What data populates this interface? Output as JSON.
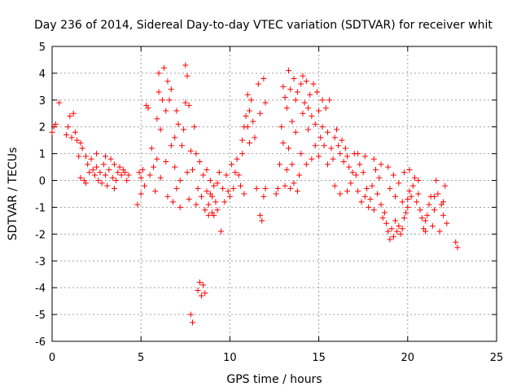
{
  "chart_data": {
    "type": "scatter",
    "title": "Day 236 of 2014, Sidereal Day-to-day VTEC variation (SDTVAR) for receiver whit",
    "xlabel": "GPS time / hours",
    "ylabel": "SDTVAR / TECUs",
    "xlim": [
      0,
      25
    ],
    "ylim": [
      -6,
      5
    ],
    "xticks": [
      "0",
      "5",
      "10",
      "15",
      "20",
      "25"
    ],
    "yticks": [
      "-6",
      "-5",
      "-4",
      "-3",
      "-2",
      "-1",
      "0",
      "1",
      "2",
      "3",
      "4",
      "5"
    ],
    "grid": true,
    "marker": "+",
    "series_color": "#ff0000",
    "series": [
      {
        "name": "SDTVAR",
        "points": [
          [
            0.0,
            1.8
          ],
          [
            0.1,
            2.0
          ],
          [
            0.2,
            2.1
          ],
          [
            0.4,
            2.9
          ],
          [
            0.8,
            1.7
          ],
          [
            0.9,
            2.0
          ],
          [
            1.0,
            2.4
          ],
          [
            1.1,
            1.6
          ],
          [
            1.2,
            2.5
          ],
          [
            1.3,
            1.8
          ],
          [
            1.4,
            1.5
          ],
          [
            1.5,
            0.9
          ],
          [
            1.6,
            1.4
          ],
          [
            1.6,
            0.1
          ],
          [
            1.7,
            1.2
          ],
          [
            1.8,
            0.0
          ],
          [
            1.9,
            0.9
          ],
          [
            1.9,
            -0.1
          ],
          [
            2.0,
            0.6
          ],
          [
            2.1,
            0.3
          ],
          [
            2.2,
            0.8
          ],
          [
            2.3,
            0.4
          ],
          [
            2.4,
            0.2
          ],
          [
            2.5,
            1.0
          ],
          [
            2.5,
            0.5
          ],
          [
            2.6,
            0.0
          ],
          [
            2.7,
            0.3
          ],
          [
            2.8,
            -0.1
          ],
          [
            2.9,
            0.6
          ],
          [
            3.0,
            0.2
          ],
          [
            3.0,
            0.9
          ],
          [
            3.1,
            -0.2
          ],
          [
            3.2,
            0.4
          ],
          [
            3.3,
            0.8
          ],
          [
            3.4,
            0.1
          ],
          [
            3.5,
            -0.3
          ],
          [
            3.5,
            0.6
          ],
          [
            3.6,
            0.0
          ],
          [
            3.7,
            0.3
          ],
          [
            3.8,
            0.5
          ],
          [
            3.9,
            0.2
          ],
          [
            4.0,
            0.4
          ],
          [
            4.1,
            0.3
          ],
          [
            4.2,
            0.0
          ],
          [
            4.3,
            0.2
          ],
          [
            4.8,
            -0.9
          ],
          [
            4.9,
            0.3
          ],
          [
            5.0,
            0.1
          ],
          [
            5.0,
            -0.5
          ],
          [
            5.1,
            0.4
          ],
          [
            5.2,
            -0.2
          ],
          [
            5.3,
            2.8
          ],
          [
            5.4,
            2.7
          ],
          [
            5.5,
            0.2
          ],
          [
            5.6,
            1.2
          ],
          [
            5.7,
            0.5
          ],
          [
            5.8,
            -0.4
          ],
          [
            5.9,
            0.8
          ],
          [
            5.9,
            2.3
          ],
          [
            6.0,
            3.3
          ],
          [
            6.0,
            4.0
          ],
          [
            6.1,
            1.9
          ],
          [
            6.1,
            0.1
          ],
          [
            6.2,
            3.0
          ],
          [
            6.3,
            4.2
          ],
          [
            6.4,
            0.7
          ],
          [
            6.4,
            2.6
          ],
          [
            6.5,
            3.7
          ],
          [
            6.5,
            -0.6
          ],
          [
            6.6,
            3.0
          ],
          [
            6.7,
            1.3
          ],
          [
            6.7,
            3.4
          ],
          [
            6.8,
            -0.8
          ],
          [
            6.9,
            0.5
          ],
          [
            6.9,
            1.6
          ],
          [
            7.0,
            2.6
          ],
          [
            7.0,
            -0.3
          ],
          [
            7.1,
            2.1
          ],
          [
            7.2,
            0.0
          ],
          [
            7.2,
            -1.0
          ],
          [
            7.3,
            1.3
          ],
          [
            7.4,
            1.9
          ],
          [
            7.5,
            2.9
          ],
          [
            7.5,
            4.3
          ],
          [
            7.6,
            3.9
          ],
          [
            7.6,
            0.3
          ],
          [
            7.7,
            2.8
          ],
          [
            7.7,
            -0.7
          ],
          [
            7.8,
            1.1
          ],
          [
            7.8,
            -5.0
          ],
          [
            7.9,
            0.4
          ],
          [
            7.9,
            -5.3
          ],
          [
            8.0,
            2.0
          ],
          [
            8.1,
            1.0
          ],
          [
            8.1,
            -0.9
          ],
          [
            8.2,
            -0.3
          ],
          [
            8.2,
            -4.1
          ],
          [
            8.3,
            0.7
          ],
          [
            8.3,
            -3.8
          ],
          [
            8.4,
            -0.6
          ],
          [
            8.4,
            -4.3
          ],
          [
            8.5,
            0.2
          ],
          [
            8.5,
            -3.9
          ],
          [
            8.6,
            -1.1
          ],
          [
            8.6,
            -4.2
          ],
          [
            8.7,
            0.4
          ],
          [
            8.7,
            -0.4
          ],
          [
            8.8,
            -0.9
          ],
          [
            8.8,
            -1.3
          ],
          [
            8.9,
            -0.5
          ],
          [
            8.9,
            0.0
          ],
          [
            9.0,
            -1.2
          ],
          [
            9.0,
            -0.6
          ],
          [
            9.1,
            -0.2
          ],
          [
            9.1,
            -1.3
          ],
          [
            9.2,
            -0.8
          ],
          [
            9.3,
            -0.1
          ],
          [
            9.3,
            -1.1
          ],
          [
            9.4,
            0.3
          ],
          [
            9.5,
            -1.9
          ],
          [
            9.6,
            -0.3
          ],
          [
            9.7,
            -0.8
          ],
          [
            9.8,
            0.2
          ],
          [
            9.9,
            -0.4
          ],
          [
            10.0,
            -0.6
          ],
          [
            10.1,
            0.6
          ],
          [
            10.2,
            -0.3
          ],
          [
            10.3,
            0.3
          ],
          [
            10.4,
            0.8
          ],
          [
            10.5,
            0.2
          ],
          [
            10.6,
            -0.2
          ],
          [
            10.7,
            1.0
          ],
          [
            10.7,
            1.5
          ],
          [
            10.8,
            2.0
          ],
          [
            10.8,
            -0.5
          ],
          [
            10.9,
            2.4
          ],
          [
            11.0,
            2.0
          ],
          [
            11.0,
            3.2
          ],
          [
            11.1,
            2.6
          ],
          [
            11.1,
            1.4
          ],
          [
            11.2,
            3.0
          ],
          [
            11.3,
            2.2
          ],
          [
            11.4,
            1.6
          ],
          [
            11.5,
            -0.3
          ],
          [
            11.6,
            3.6
          ],
          [
            11.7,
            2.5
          ],
          [
            11.7,
            -1.3
          ],
          [
            11.8,
            -1.5
          ],
          [
            11.9,
            3.8
          ],
          [
            11.9,
            -0.6
          ],
          [
            12.0,
            2.9
          ],
          [
            12.0,
            -0.3
          ],
          [
            12.6,
            -0.5
          ],
          [
            12.7,
            -0.3
          ],
          [
            12.8,
            0.6
          ],
          [
            12.9,
            2.0
          ],
          [
            13.0,
            3.5
          ],
          [
            13.0,
            1.4
          ],
          [
            13.1,
            3.1
          ],
          [
            13.1,
            -0.2
          ],
          [
            13.2,
            2.7
          ],
          [
            13.2,
            0.4
          ],
          [
            13.3,
            4.1
          ],
          [
            13.3,
            1.2
          ],
          [
            13.4,
            3.4
          ],
          [
            13.4,
            -0.3
          ],
          [
            13.5,
            2.2
          ],
          [
            13.5,
            0.6
          ],
          [
            13.6,
            3.8
          ],
          [
            13.6,
            -0.1
          ],
          [
            13.7,
            3.0
          ],
          [
            13.7,
            1.8
          ],
          [
            13.8,
            3.3
          ],
          [
            13.8,
            -0.4
          ],
          [
            13.9,
            0.2
          ],
          [
            14.0,
            3.6
          ],
          [
            14.0,
            1.0
          ],
          [
            14.1,
            2.5
          ],
          [
            14.1,
            3.9
          ],
          [
            14.2,
            2.9
          ],
          [
            14.3,
            3.7
          ],
          [
            14.3,
            0.6
          ],
          [
            14.4,
            1.9
          ],
          [
            14.4,
            2.7
          ],
          [
            14.5,
            3.2
          ],
          [
            14.6,
            0.8
          ],
          [
            14.6,
            2.4
          ],
          [
            14.7,
            3.6
          ],
          [
            14.8,
            2.1
          ],
          [
            14.8,
            1.3
          ],
          [
            14.9,
            3.3
          ],
          [
            15.0,
            2.6
          ],
          [
            15.0,
            0.9
          ],
          [
            15.1,
            1.6
          ],
          [
            15.2,
            3.0
          ],
          [
            15.2,
            2.0
          ],
          [
            15.3,
            1.3
          ],
          [
            15.4,
            2.7
          ],
          [
            15.5,
            0.6
          ],
          [
            15.5,
            1.8
          ],
          [
            15.6,
            3.0
          ],
          [
            15.7,
            1.2
          ],
          [
            15.8,
            0.8
          ],
          [
            15.9,
            1.6
          ],
          [
            16.0,
            1.9
          ],
          [
            16.1,
            1.3
          ],
          [
            16.2,
            1.0
          ],
          [
            16.3,
            1.5
          ],
          [
            16.4,
            0.7
          ],
          [
            16.5,
            1.2
          ],
          [
            16.6,
            0.9
          ],
          [
            16.7,
            0.5
          ],
          [
            16.8,
            -0.1
          ],
          [
            16.9,
            0.3
          ],
          [
            17.0,
            1.0
          ],
          [
            17.1,
            0.2
          ],
          [
            17.2,
            -0.4
          ],
          [
            17.3,
            0.6
          ],
          [
            17.4,
            -0.8
          ],
          [
            17.5,
            0.3
          ],
          [
            17.6,
            -0.6
          ],
          [
            17.7,
            -0.3
          ],
          [
            17.8,
            -1.0
          ],
          [
            17.9,
            -0.7
          ],
          [
            18.0,
            -0.2
          ],
          [
            18.1,
            -1.1
          ],
          [
            18.2,
            0.4
          ],
          [
            18.3,
            -0.5
          ],
          [
            18.4,
            0.1
          ],
          [
            18.5,
            -0.9
          ],
          [
            18.6,
            -1.4
          ],
          [
            18.7,
            -1.2
          ],
          [
            18.8,
            -1.6
          ],
          [
            18.9,
            -1.9
          ],
          [
            19.0,
            -2.2
          ],
          [
            19.1,
            -1.8
          ],
          [
            19.2,
            -2.1
          ],
          [
            19.3,
            -1.5
          ],
          [
            19.4,
            -1.9
          ],
          [
            19.5,
            -1.7
          ],
          [
            19.6,
            -2.0
          ],
          [
            19.7,
            -1.8
          ],
          [
            19.8,
            -1.4
          ],
          [
            19.9,
            -1.2
          ],
          [
            20.0,
            -1.0
          ],
          [
            20.1,
            -0.4
          ],
          [
            20.2,
            -0.6
          ],
          [
            20.3,
            -0.2
          ],
          [
            20.4,
            0.1
          ],
          [
            20.5,
            -0.8
          ],
          [
            20.6,
            -0.5
          ],
          [
            20.7,
            -1.1
          ],
          [
            20.8,
            -1.4
          ],
          [
            20.9,
            -1.8
          ],
          [
            21.0,
            -1.5
          ],
          [
            21.1,
            -1.3
          ],
          [
            21.2,
            -0.9
          ],
          [
            21.3,
            -0.6
          ],
          [
            21.4,
            -1.7
          ],
          [
            21.5,
            -1.1
          ],
          [
            21.6,
            0.0
          ],
          [
            21.7,
            -0.5
          ],
          [
            21.8,
            -1.9
          ],
          [
            21.9,
            -0.9
          ],
          [
            22.0,
            -1.3
          ],
          [
            22.1,
            -0.2
          ],
          [
            22.2,
            -1.6
          ],
          [
            22.7,
            -2.3
          ],
          [
            22.8,
            -2.5
          ],
          [
            17.2,
            1.0
          ],
          [
            17.6,
            0.9
          ],
          [
            18.1,
            0.8
          ],
          [
            18.5,
            0.6
          ],
          [
            18.9,
            0.5
          ],
          [
            19.2,
            0.2
          ],
          [
            19.5,
            -0.1
          ],
          [
            19.8,
            0.3
          ],
          [
            20.1,
            0.4
          ],
          [
            20.6,
            0.0
          ],
          [
            15.9,
            -0.2
          ],
          [
            16.2,
            -0.5
          ],
          [
            16.6,
            -0.4
          ],
          [
            19.0,
            -0.3
          ],
          [
            19.3,
            -0.6
          ],
          [
            19.7,
            -0.8
          ],
          [
            20.0,
            -0.7
          ],
          [
            21.5,
            -0.6
          ],
          [
            22.0,
            -0.8
          ],
          [
            21.0,
            -1.9
          ]
        ]
      }
    ]
  }
}
